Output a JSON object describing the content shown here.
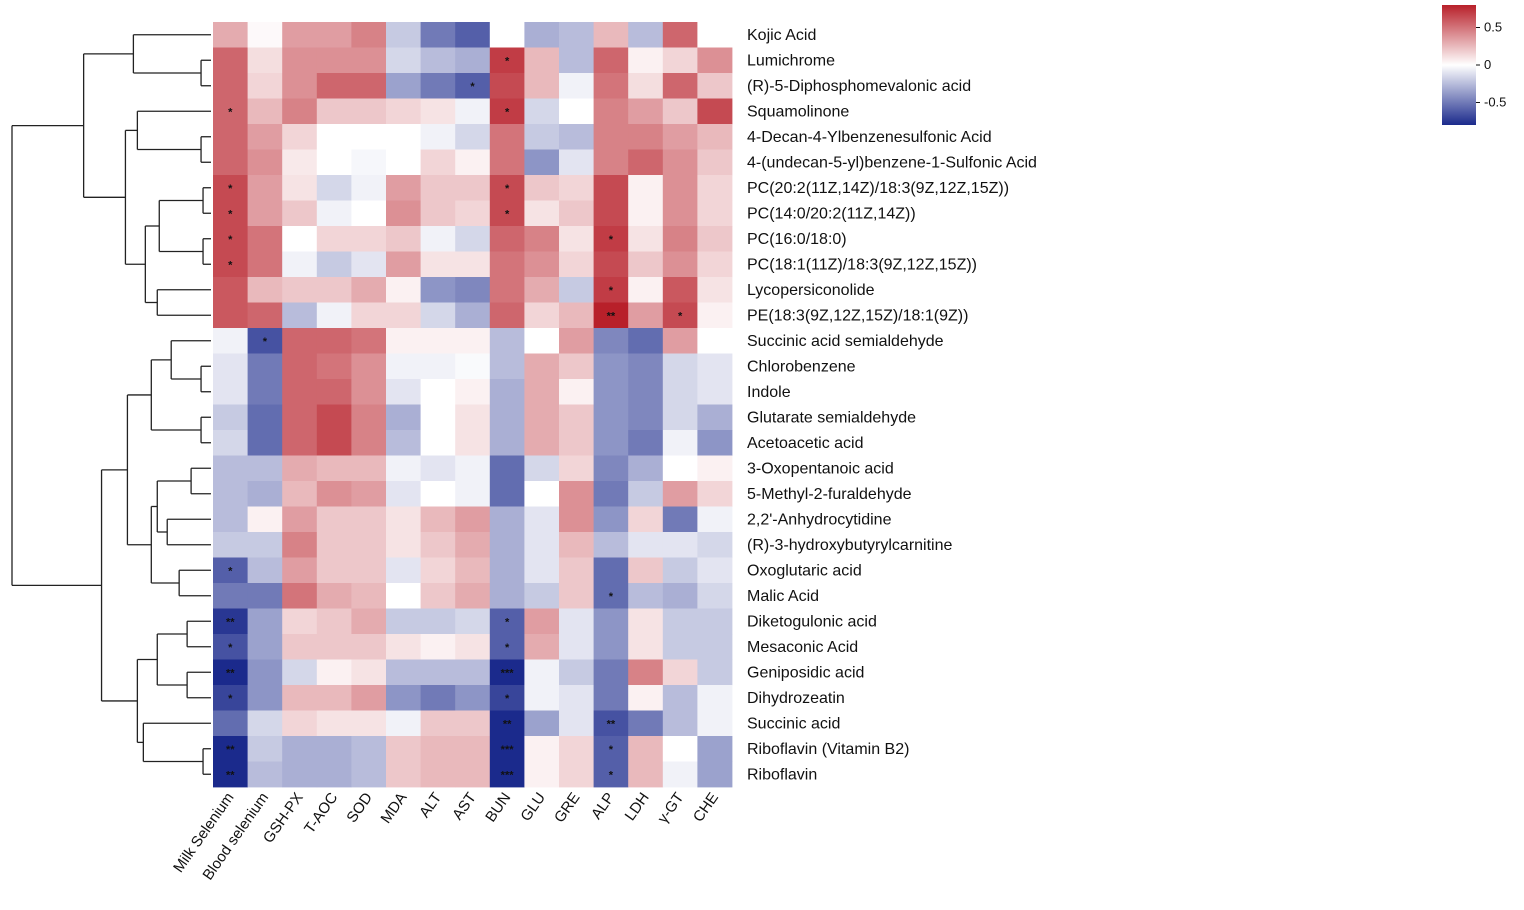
{
  "chart_data": {
    "type": "heatmap",
    "title": "",
    "columns": [
      "Milk Selenium",
      "Blood selenium",
      "GSH-PX",
      "T-AOC",
      "SOD",
      "MDA",
      "ALT",
      "AST",
      "BUN",
      "GLU",
      "GRE",
      "ALP",
      "LDH",
      "γ-GT",
      "CHE"
    ],
    "rows": [
      "Kojic Acid",
      "Lumichrome",
      "(R)-5-Diphosphomevalonic acid",
      "Squamolinone",
      "4-Decan-4-Ylbenzenesulfonic Acid",
      "4-(undecan-5-yl)benzene-1-Sulfonic Acid",
      "PC(20:2(11Z,14Z)/18:3(9Z,12Z,15Z))",
      "PC(14:0/20:2(11Z,14Z))",
      "PC(16:0/18:0)",
      "PC(18:1(11Z)/18:3(9Z,12Z,15Z))",
      "Lycopersiconolide",
      "PE(18:3(9Z,12Z,15Z)/18:1(9Z))",
      "Succinic acid semialdehyde",
      "Chlorobenzene",
      "Indole",
      "Glutarate semialdehyde",
      "Acetoacetic acid",
      "3-Oxopentanoic acid",
      "5-Methyl-2-furaldehyde",
      "2,2'-Anhydrocytidine",
      "(R)-3-hydroxybutyrylcarnitine",
      "Oxoglutaric acid",
      "Malic Acid",
      "Diketogulonic acid",
      "Mesaconic Acid",
      "Geniposidic acid",
      "Dihydrozeatin",
      "Succinic acid",
      "Riboflavin (Vitamin B2)",
      "Riboflavin"
    ],
    "values": [
      [
        0.3,
        0.02,
        0.35,
        0.35,
        0.45,
        -0.2,
        -0.5,
        -0.6,
        0.0,
        -0.3,
        -0.25,
        0.25,
        -0.25,
        0.55,
        0.0
      ],
      [
        0.55,
        0.12,
        0.4,
        0.4,
        0.4,
        -0.15,
        -0.25,
        -0.3,
        0.7,
        0.25,
        -0.25,
        0.55,
        0.05,
        0.15,
        0.4
      ],
      [
        0.55,
        0.15,
        0.4,
        0.55,
        0.55,
        -0.35,
        -0.5,
        -0.6,
        0.65,
        0.25,
        -0.05,
        0.5,
        0.12,
        0.55,
        0.2
      ],
      [
        0.55,
        0.25,
        0.45,
        0.2,
        0.2,
        0.15,
        0.1,
        -0.05,
        0.7,
        -0.15,
        0.0,
        0.45,
        0.35,
        0.2,
        0.65
      ],
      [
        0.55,
        0.35,
        0.15,
        0.0,
        0.0,
        0.0,
        -0.05,
        -0.15,
        0.5,
        -0.2,
        -0.25,
        0.45,
        0.45,
        0.35,
        0.25
      ],
      [
        0.55,
        0.4,
        0.08,
        0.0,
        -0.03,
        0.0,
        0.15,
        0.05,
        0.5,
        -0.4,
        -0.1,
        0.45,
        0.55,
        0.4,
        0.2
      ],
      [
        0.65,
        0.35,
        0.1,
        -0.15,
        -0.05,
        0.35,
        0.2,
        0.2,
        0.65,
        0.2,
        0.15,
        0.65,
        0.05,
        0.4,
        0.15
      ],
      [
        0.65,
        0.35,
        0.2,
        -0.05,
        0.0,
        0.4,
        0.2,
        0.15,
        0.65,
        0.1,
        0.2,
        0.65,
        0.05,
        0.4,
        0.15
      ],
      [
        0.65,
        0.5,
        0.0,
        0.15,
        0.15,
        0.2,
        -0.05,
        -0.15,
        0.55,
        0.45,
        0.1,
        0.7,
        0.1,
        0.45,
        0.2
      ],
      [
        0.65,
        0.5,
        -0.05,
        -0.2,
        -0.1,
        0.35,
        0.1,
        0.1,
        0.5,
        0.4,
        0.15,
        0.65,
        0.2,
        0.4,
        0.15
      ],
      [
        0.6,
        0.25,
        0.2,
        0.2,
        0.3,
        0.05,
        -0.4,
        -0.45,
        0.5,
        0.3,
        -0.2,
        0.7,
        0.05,
        0.6,
        0.1
      ],
      [
        0.6,
        0.55,
        -0.25,
        -0.05,
        0.15,
        0.15,
        -0.15,
        -0.3,
        0.55,
        0.15,
        0.25,
        0.8,
        0.35,
        0.65,
        0.05
      ],
      [
        -0.05,
        -0.65,
        0.55,
        0.55,
        0.5,
        0.05,
        0.05,
        0.05,
        -0.25,
        0.0,
        0.35,
        -0.45,
        -0.55,
        0.35,
        0.0
      ],
      [
        -0.1,
        -0.5,
        0.55,
        0.5,
        0.4,
        -0.05,
        -0.05,
        -0.02,
        -0.25,
        0.3,
        0.2,
        -0.4,
        -0.45,
        -0.15,
        -0.1
      ],
      [
        -0.1,
        -0.5,
        0.55,
        0.55,
        0.4,
        -0.1,
        0.0,
        0.05,
        -0.3,
        0.3,
        0.05,
        -0.4,
        -0.45,
        -0.15,
        -0.1
      ],
      [
        -0.2,
        -0.55,
        0.55,
        0.65,
        0.45,
        -0.3,
        0.0,
        0.1,
        -0.3,
        0.3,
        0.2,
        -0.4,
        -0.45,
        -0.15,
        -0.3
      ],
      [
        -0.15,
        -0.55,
        0.55,
        0.65,
        0.45,
        -0.25,
        0.0,
        0.1,
        -0.3,
        0.3,
        0.2,
        -0.4,
        -0.5,
        -0.05,
        -0.4
      ],
      [
        -0.25,
        -0.25,
        0.3,
        0.25,
        0.25,
        -0.05,
        -0.1,
        -0.05,
        -0.55,
        -0.15,
        0.15,
        -0.45,
        -0.3,
        0.0,
        0.05
      ],
      [
        -0.25,
        -0.3,
        0.25,
        0.4,
        0.35,
        -0.1,
        0.0,
        -0.05,
        -0.55,
        0.0,
        0.4,
        -0.5,
        -0.2,
        0.35,
        0.15
      ],
      [
        -0.25,
        0.05,
        0.35,
        0.2,
        0.2,
        0.1,
        0.25,
        0.35,
        -0.3,
        -0.1,
        0.4,
        -0.4,
        0.15,
        -0.5,
        -0.05
      ],
      [
        -0.2,
        -0.2,
        0.45,
        0.2,
        0.2,
        0.1,
        0.2,
        0.3,
        -0.3,
        -0.1,
        0.25,
        -0.25,
        -0.1,
        -0.1,
        -0.15
      ],
      [
        -0.6,
        -0.25,
        0.35,
        0.2,
        0.2,
        -0.1,
        0.15,
        0.25,
        -0.3,
        -0.1,
        0.2,
        -0.55,
        0.2,
        -0.2,
        -0.1
      ],
      [
        -0.5,
        -0.5,
        0.5,
        0.3,
        0.25,
        0.0,
        0.2,
        0.3,
        -0.3,
        -0.2,
        0.2,
        -0.55,
        -0.25,
        -0.3,
        -0.15
      ],
      [
        -0.75,
        -0.35,
        0.15,
        0.2,
        0.3,
        -0.2,
        -0.2,
        -0.15,
        -0.6,
        0.35,
        -0.1,
        -0.4,
        0.1,
        -0.2,
        -0.2
      ],
      [
        -0.65,
        -0.35,
        0.2,
        0.2,
        0.2,
        0.1,
        0.05,
        0.1,
        -0.6,
        0.3,
        -0.1,
        -0.4,
        0.1,
        -0.2,
        -0.2
      ],
      [
        -0.9,
        -0.4,
        -0.15,
        0.05,
        0.1,
        -0.25,
        -0.25,
        -0.25,
        -0.85,
        -0.05,
        -0.2,
        -0.5,
        0.45,
        0.15,
        -0.2
      ],
      [
        -0.7,
        -0.4,
        0.25,
        0.25,
        0.35,
        -0.4,
        -0.5,
        -0.4,
        -0.7,
        -0.05,
        -0.1,
        -0.5,
        0.05,
        -0.25,
        -0.05
      ],
      [
        -0.55,
        -0.15,
        0.15,
        0.1,
        0.1,
        -0.05,
        0.2,
        0.2,
        -0.8,
        -0.35,
        -0.1,
        -0.65,
        -0.5,
        -0.25,
        -0.05
      ],
      [
        -0.85,
        -0.2,
        -0.3,
        -0.3,
        -0.25,
        0.2,
        0.25,
        0.25,
        -0.9,
        0.05,
        0.15,
        -0.6,
        0.25,
        0.0,
        -0.35
      ],
      [
        -0.85,
        -0.25,
        -0.3,
        -0.3,
        -0.25,
        0.2,
        0.25,
        0.25,
        -0.9,
        0.05,
        0.15,
        -0.6,
        0.25,
        -0.05,
        -0.35
      ]
    ],
    "significance": [
      [
        "",
        "",
        "",
        "",
        "",
        "",
        "",
        "",
        "",
        "",
        "",
        "",
        "",
        "",
        ""
      ],
      [
        "",
        "",
        "",
        "",
        "",
        "",
        "",
        "",
        "*",
        "",
        "",
        "",
        "",
        "",
        ""
      ],
      [
        "",
        "",
        "",
        "",
        "",
        "",
        "",
        "*",
        "",
        "",
        "",
        "",
        "",
        "",
        ""
      ],
      [
        "*",
        "",
        "",
        "",
        "",
        "",
        "",
        "",
        "*",
        "",
        "",
        "",
        "",
        "",
        ""
      ],
      [
        "",
        "",
        "",
        "",
        "",
        "",
        "",
        "",
        "",
        "",
        "",
        "",
        "",
        "",
        ""
      ],
      [
        "",
        "",
        "",
        "",
        "",
        "",
        "",
        "",
        "",
        "",
        "",
        "",
        "",
        "",
        ""
      ],
      [
        "*",
        "",
        "",
        "",
        "",
        "",
        "",
        "",
        "*",
        "",
        "",
        "",
        "",
        "",
        ""
      ],
      [
        "*",
        "",
        "",
        "",
        "",
        "",
        "",
        "",
        "*",
        "",
        "",
        "",
        "",
        "",
        ""
      ],
      [
        "*",
        "",
        "",
        "",
        "",
        "",
        "",
        "",
        "",
        "",
        "",
        "*",
        "",
        "",
        ""
      ],
      [
        "*",
        "",
        "",
        "",
        "",
        "",
        "",
        "",
        "",
        "",
        "",
        "",
        "",
        "",
        ""
      ],
      [
        "",
        "",
        "",
        "",
        "",
        "",
        "",
        "",
        "",
        "",
        "",
        "*",
        "",
        "",
        ""
      ],
      [
        "",
        "",
        "",
        "",
        "",
        "",
        "",
        "",
        "",
        "",
        "",
        "**",
        "",
        "*",
        ""
      ],
      [
        "",
        "*",
        "",
        "",
        "",
        "",
        "",
        "",
        "",
        "",
        "",
        "",
        "",
        "",
        ""
      ],
      [
        "",
        "",
        "",
        "",
        "",
        "",
        "",
        "",
        "",
        "",
        "",
        "",
        "",
        "",
        ""
      ],
      [
        "",
        "",
        "",
        "",
        "",
        "",
        "",
        "",
        "",
        "",
        "",
        "",
        "",
        "",
        ""
      ],
      [
        "",
        "",
        "",
        "",
        "",
        "",
        "",
        "",
        "",
        "",
        "",
        "",
        "",
        "",
        ""
      ],
      [
        "",
        "",
        "",
        "",
        "",
        "",
        "",
        "",
        "",
        "",
        "",
        "",
        "",
        "",
        ""
      ],
      [
        "",
        "",
        "",
        "",
        "",
        "",
        "",
        "",
        "",
        "",
        "",
        "",
        "",
        "",
        ""
      ],
      [
        "",
        "",
        "",
        "",
        "",
        "",
        "",
        "",
        "",
        "",
        "",
        "",
        "",
        "",
        ""
      ],
      [
        "",
        "",
        "",
        "",
        "",
        "",
        "",
        "",
        "",
        "",
        "",
        "",
        "",
        "",
        ""
      ],
      [
        "",
        "",
        "",
        "",
        "",
        "",
        "",
        "",
        "",
        "",
        "",
        "",
        "",
        "",
        ""
      ],
      [
        "*",
        "",
        "",
        "",
        "",
        "",
        "",
        "",
        "",
        "",
        "",
        "",
        "",
        "",
        ""
      ],
      [
        "",
        "",
        "",
        "",
        "",
        "",
        "",
        "",
        "",
        "",
        "",
        "*",
        "",
        "",
        ""
      ],
      [
        "**",
        "",
        "",
        "",
        "",
        "",
        "",
        "",
        "*",
        "",
        "",
        "",
        "",
        "",
        ""
      ],
      [
        "*",
        "",
        "",
        "",
        "",
        "",
        "",
        "",
        "*",
        "",
        "",
        "",
        "",
        "",
        ""
      ],
      [
        "**",
        "",
        "",
        "",
        "",
        "",
        "",
        "",
        "***",
        "",
        "",
        "",
        "",
        "",
        ""
      ],
      [
        "*",
        "",
        "",
        "",
        "",
        "",
        "",
        "",
        "*",
        "",
        "",
        "",
        "",
        "",
        ""
      ],
      [
        "",
        "",
        "",
        "",
        "",
        "",
        "",
        "",
        "**",
        "",
        "",
        "**",
        "",
        "",
        ""
      ],
      [
        "**",
        "",
        "",
        "",
        "",
        "",
        "",
        "",
        "***",
        "",
        "",
        "*",
        "",
        "",
        ""
      ],
      [
        "**",
        "",
        "",
        "",
        "",
        "",
        "",
        "",
        "***",
        "",
        "",
        "*",
        "",
        "",
        ""
      ]
    ],
    "colorscale": {
      "min": -0.8,
      "mid": 0,
      "max": 0.8,
      "low_color": "#1b2a8c",
      "mid_color": "#ffffff",
      "high_color": "#b8202a"
    },
    "legend": {
      "position": "top-right",
      "ticks": [
        0.5,
        0,
        -0.5
      ],
      "tick_labels": [
        "0.5",
        "0",
        "-0.5"
      ]
    },
    "row_dendrogram": {
      "side": "left",
      "leaf_order": [
        0,
        1,
        2,
        3,
        4,
        5,
        6,
        7,
        8,
        9,
        10,
        11,
        12,
        13,
        14,
        15,
        16,
        17,
        18,
        19,
        20,
        21,
        22,
        23,
        24,
        25,
        26,
        27,
        28,
        29
      ]
    }
  }
}
